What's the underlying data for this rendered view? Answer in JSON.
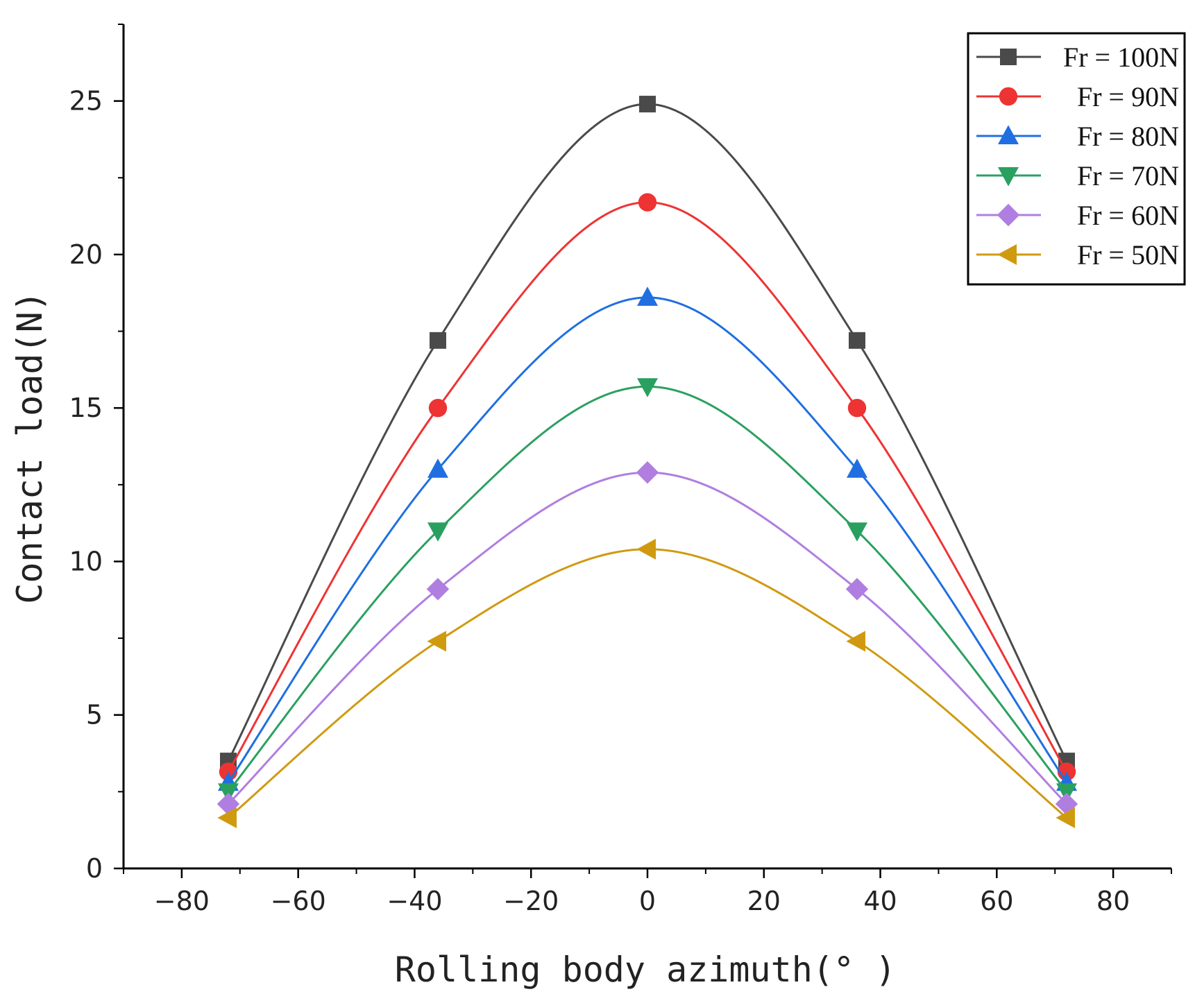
{
  "chart_data": {
    "type": "line",
    "title": "",
    "xlabel": "Rolling body azimuth(° )",
    "ylabel": "Contact load(N)",
    "xlim": [
      -90,
      90
    ],
    "ylim": [
      0,
      27.5
    ],
    "x_ticks": [
      -80,
      -60,
      -40,
      -20,
      0,
      20,
      40,
      60,
      80
    ],
    "y_ticks": [
      0,
      5,
      10,
      15,
      20,
      25
    ],
    "x": [
      -72,
      -36,
      0,
      36,
      72
    ],
    "legend_position": "top-right",
    "series": [
      {
        "name": "Fr = 100N",
        "color": "#4a4a4a",
        "marker": "square",
        "values": [
          3.5,
          17.2,
          24.9,
          17.2,
          3.5
        ]
      },
      {
        "name": "Fr = 90N",
        "color": "#ee3333",
        "marker": "circle",
        "values": [
          3.15,
          15.0,
          21.7,
          15.0,
          3.15
        ]
      },
      {
        "name": "Fr = 80N",
        "color": "#1f6fe0",
        "marker": "triangle-up",
        "values": [
          2.8,
          13.0,
          18.6,
          13.0,
          2.8
        ]
      },
      {
        "name": "Fr = 70N",
        "color": "#2aa060",
        "marker": "triangle-down",
        "values": [
          2.5,
          11.0,
          15.7,
          11.0,
          2.5
        ]
      },
      {
        "name": "Fr = 60N",
        "color": "#b07ee0",
        "marker": "diamond",
        "values": [
          2.1,
          9.1,
          12.9,
          9.1,
          2.1
        ]
      },
      {
        "name": "Fr = 50N",
        "color": "#d09a10",
        "marker": "triangle-left",
        "values": [
          1.65,
          7.4,
          10.4,
          7.4,
          1.65
        ]
      }
    ]
  }
}
